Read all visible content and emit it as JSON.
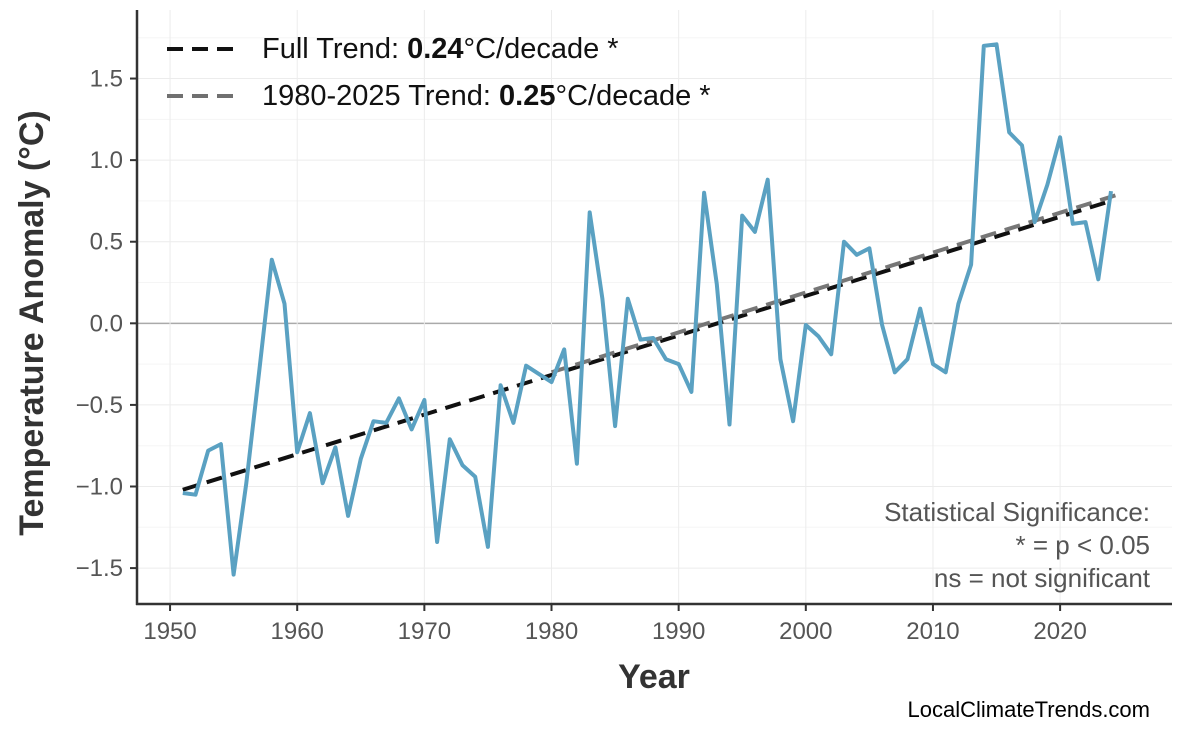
{
  "chart_data": {
    "type": "line",
    "title": "",
    "xlabel": "Year",
    "ylabel": "Temperature Anomaly (°C)",
    "xlim": [
      1947.4,
      2028.8
    ],
    "ylim": [
      -1.72,
      1.92
    ],
    "xticks": [
      1950,
      1960,
      1970,
      1980,
      1990,
      2000,
      2010,
      2020
    ],
    "yticks": [
      -1.5,
      -1.0,
      -0.5,
      0.0,
      0.5,
      1.0,
      1.5
    ],
    "ytick_labels": [
      "−1.5",
      "−1.0",
      "−0.5",
      "0.0",
      "0.5",
      "1.0",
      "1.5"
    ],
    "grid": true,
    "zero_line": true,
    "colors": {
      "series": "#5aa1c2",
      "full_trend": "#111111",
      "recent_trend": "#707070"
    },
    "series": [
      {
        "x": [
          1951,
          1952,
          1953,
          1954,
          1955,
          1956,
          1957,
          1958,
          1959,
          1960,
          1961,
          1962,
          1963,
          1964,
          1965,
          1966,
          1967,
          1968,
          1969,
          1970,
          1971,
          1972,
          1973,
          1974,
          1975,
          1976,
          1977,
          1978,
          1979,
          1980,
          1981,
          1982,
          1983,
          1984,
          1985,
          1986,
          1987,
          1988,
          1989,
          1990,
          1991,
          1992,
          1993,
          1994,
          1995,
          1996,
          1997,
          1998,
          1999,
          2000,
          2001,
          2002,
          2003,
          2004,
          2005,
          2006,
          2007,
          2008,
          2009,
          2010,
          2011,
          2012,
          2013,
          2014,
          2015,
          2016,
          2017,
          2018,
          2019,
          2020,
          2021,
          2022,
          2023,
          2024
        ],
        "values": [
          -1.04,
          -1.05,
          -0.78,
          -0.74,
          -1.54,
          -0.98,
          -0.3,
          0.39,
          0.12,
          -0.79,
          -0.55,
          -0.98,
          -0.76,
          -1.18,
          -0.83,
          -0.6,
          -0.61,
          -0.46,
          -0.65,
          -0.47,
          -1.34,
          -0.71,
          -0.87,
          -0.94,
          -1.37,
          -0.38,
          -0.61,
          -0.26,
          -0.31,
          -0.36,
          -0.16,
          -0.86,
          0.68,
          0.15,
          -0.63,
          0.15,
          -0.1,
          -0.09,
          -0.22,
          -0.25,
          -0.42,
          0.8,
          0.24,
          -0.62,
          0.66,
          0.56,
          0.88,
          -0.22,
          -0.6,
          -0.01,
          -0.08,
          -0.19,
          0.5,
          0.42,
          0.46,
          -0.01,
          -0.3,
          -0.22,
          0.09,
          -0.25,
          -0.3,
          0.12,
          0.36,
          1.7,
          1.71,
          1.17,
          1.09,
          0.62,
          0.85,
          1.14,
          0.61,
          0.62,
          0.27,
          0.81
        ]
      }
    ],
    "trends": [
      {
        "label_prefix": "Full Trend: ",
        "rate": "0.24",
        "label_suffix": "°C/decade *",
        "x": [
          1951,
          2024
        ],
        "y": [
          -1.02,
          0.75
        ]
      },
      {
        "label_prefix": "1980-2025 Trend: ",
        "rate": "0.25",
        "label_suffix": "°C/decade *",
        "x": [
          1980,
          2025
        ],
        "y": [
          -0.3,
          0.8
        ]
      }
    ],
    "legend_position": "top-left",
    "annotation": [
      "Statistical Significance:",
      "* = p < 0.05",
      "ns = not significant"
    ]
  },
  "watermark": "LocalClimateTrends.com"
}
